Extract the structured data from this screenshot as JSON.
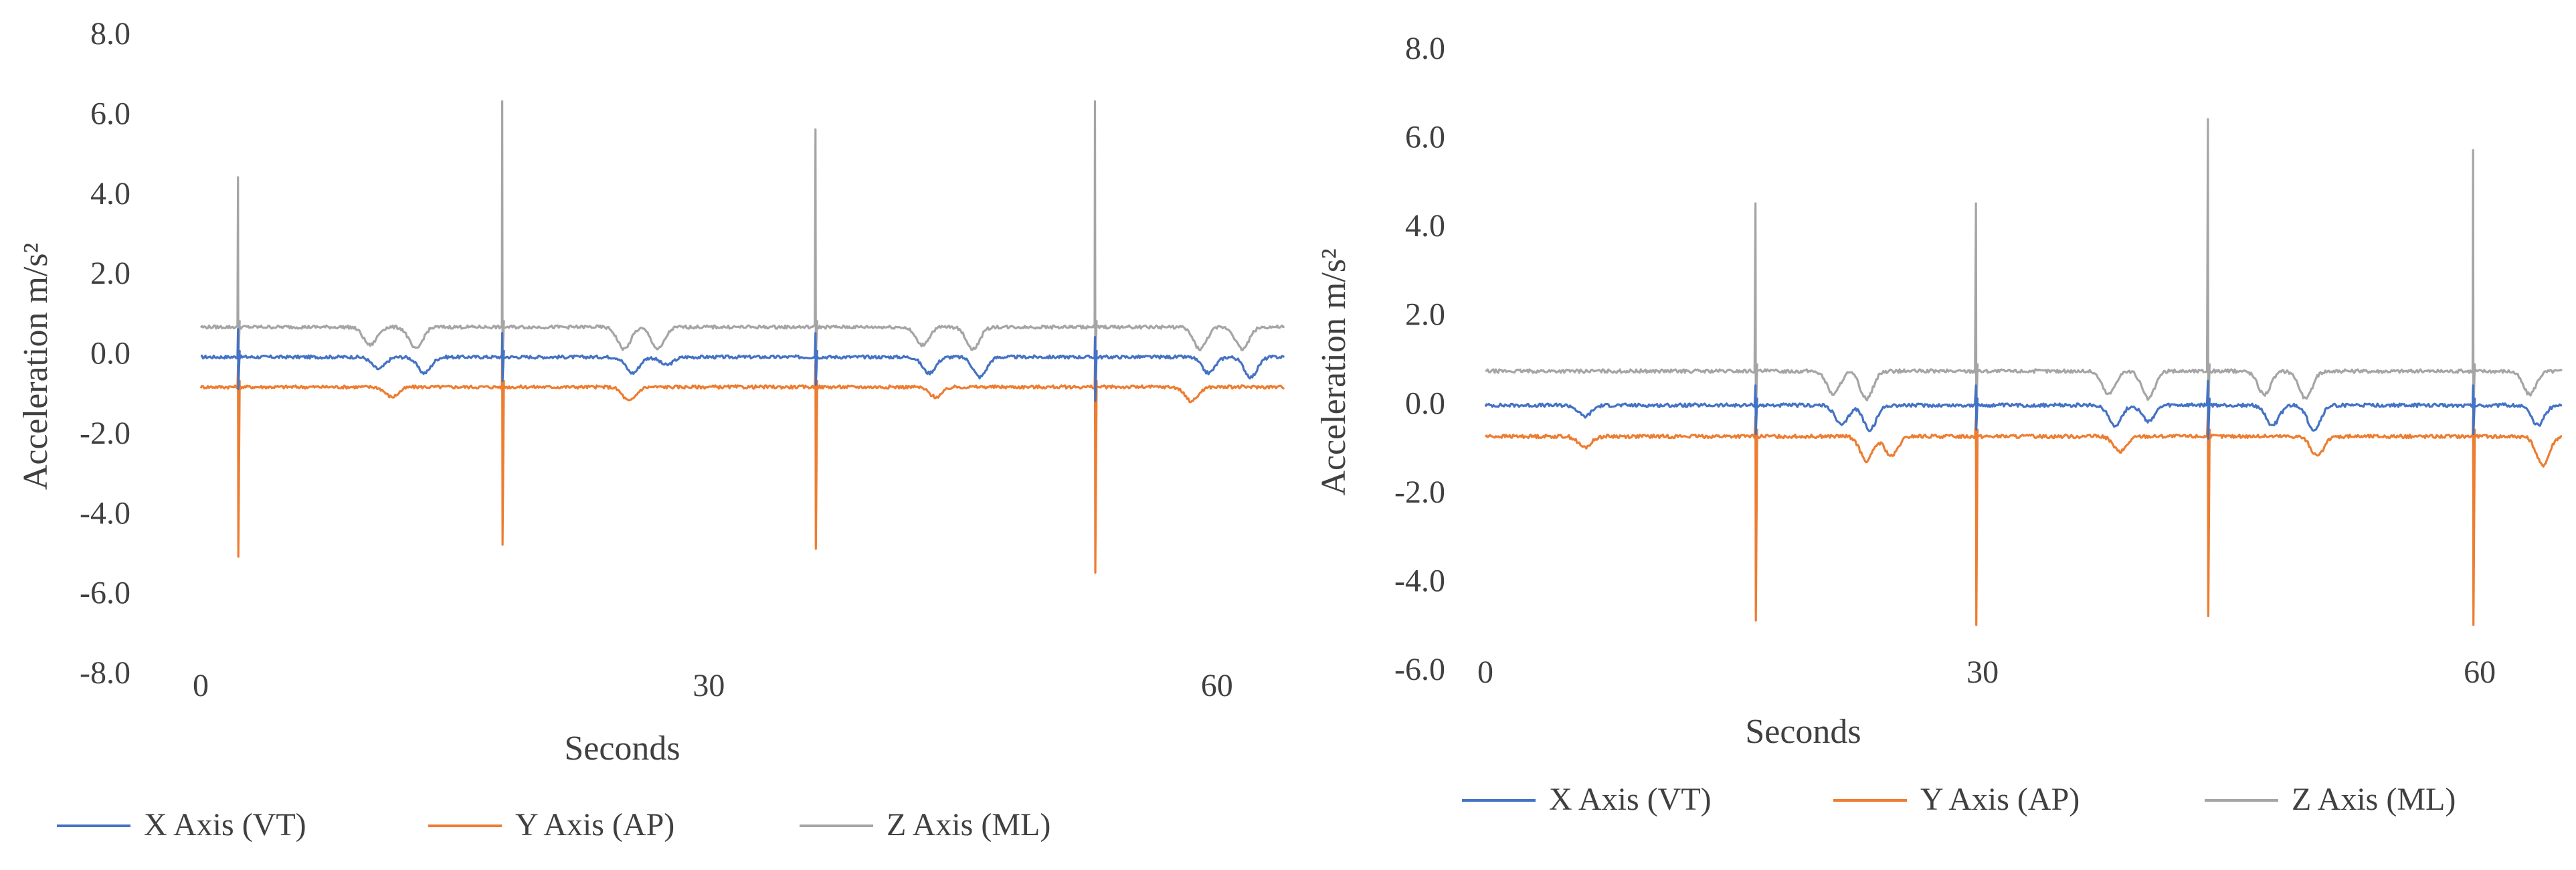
{
  "chart_data": [
    {
      "type": "line",
      "title": "",
      "xlabel": "Seconds",
      "ylabel": "Acceleration m/s²",
      "ylim": [
        -8.0,
        8.0
      ],
      "xlim": [
        0,
        64
      ],
      "y_ticks": [
        "8.0",
        "6.0",
        "4.0",
        "2.0",
        "0.0",
        "-2.0",
        "-4.0",
        "-6.0",
        "-8.0"
      ],
      "x_ticks": [
        "0",
        "30",
        "60"
      ],
      "grid": false,
      "legend": "bottom",
      "series": [
        {
          "name": "X Axis (VT)",
          "color": "#4472C4",
          "baseline": -0.1,
          "spikes": [
            {
              "x": 2.2,
              "values": [
                0.6,
                -0.9
              ]
            },
            {
              "x": 17.8,
              "values": [
                0.5,
                -0.7
              ]
            },
            {
              "x": 36.3,
              "values": [
                0.5,
                -0.8
              ]
            },
            {
              "x": 52.8,
              "values": [
                0.4,
                -1.2
              ]
            }
          ],
          "dips": [
            {
              "x": 10.5,
              "depth": -0.4
            },
            {
              "x": 13.2,
              "depth": -0.5
            },
            {
              "x": 25.5,
              "depth": -0.5
            },
            {
              "x": 27.5,
              "depth": -0.3
            },
            {
              "x": 43.0,
              "depth": -0.5
            },
            {
              "x": 46.0,
              "depth": -0.6
            },
            {
              "x": 59.5,
              "depth": -0.5
            },
            {
              "x": 62.0,
              "depth": -0.6
            }
          ]
        },
        {
          "name": "Y Axis (AP)",
          "color": "#ED7D31",
          "baseline": -0.85,
          "spikes": [
            {
              "x": 2.2,
              "values": [
                -0.3,
                -5.1
              ]
            },
            {
              "x": 17.8,
              "values": [
                0.2,
                -4.8
              ]
            },
            {
              "x": 36.3,
              "values": [
                -0.2,
                -4.9
              ]
            },
            {
              "x": 52.8,
              "values": [
                -0.3,
                -5.5
              ]
            }
          ],
          "dips": [
            {
              "x": 11.3,
              "depth": -1.1
            },
            {
              "x": 25.3,
              "depth": -1.2
            },
            {
              "x": 43.4,
              "depth": -1.1
            },
            {
              "x": 58.5,
              "depth": -1.2
            }
          ]
        },
        {
          "name": "Z Axis (ML)",
          "color": "#A5A5A5",
          "baseline": 0.65,
          "spikes": [
            {
              "x": 2.2,
              "values": [
                4.4,
                -0.3
              ]
            },
            {
              "x": 17.8,
              "values": [
                6.3,
                -0.2
              ]
            },
            {
              "x": 36.3,
              "values": [
                5.6,
                -0.1
              ]
            },
            {
              "x": 52.8,
              "values": [
                6.3,
                -0.2
              ]
            }
          ],
          "dips": [
            {
              "x": 10.0,
              "depth": 0.2
            },
            {
              "x": 12.7,
              "depth": 0.1
            },
            {
              "x": 25.0,
              "depth": 0.1
            },
            {
              "x": 27.0,
              "depth": 0.1
            },
            {
              "x": 42.6,
              "depth": 0.2
            },
            {
              "x": 45.6,
              "depth": 0.1
            },
            {
              "x": 59.0,
              "depth": 0.1
            },
            {
              "x": 61.5,
              "depth": 0.1
            }
          ]
        }
      ]
    },
    {
      "type": "line",
      "title": "",
      "xlabel": "Seconds",
      "ylabel": "Acceleration m/s²",
      "ylim": [
        -6.0,
        8.0
      ],
      "xlim": [
        0,
        65
      ],
      "y_ticks": [
        "8.0",
        "6.0",
        "4.0",
        "2.0",
        "0.0",
        "-2.0",
        "-4.0",
        "-6.0"
      ],
      "x_ticks": [
        "0",
        "30",
        "60"
      ],
      "grid": false,
      "legend": "bottom",
      "series": [
        {
          "name": "X Axis (VT)",
          "color": "#4472C4",
          "baseline": -0.05,
          "spikes": [
            {
              "x": 16.3,
              "values": [
                0.4,
                -0.7
              ]
            },
            {
              "x": 29.6,
              "values": [
                0.4,
                -0.6
              ]
            },
            {
              "x": 43.6,
              "values": [
                0.5,
                -0.8
              ]
            },
            {
              "x": 59.6,
              "values": [
                0.4,
                -0.7
              ]
            }
          ],
          "dips": [
            {
              "x": 6.0,
              "depth": -0.3
            },
            {
              "x": 21.5,
              "depth": -0.5
            },
            {
              "x": 23.2,
              "depth": -0.6
            },
            {
              "x": 38.0,
              "depth": -0.5
            },
            {
              "x": 40.0,
              "depth": -0.4
            },
            {
              "x": 47.5,
              "depth": -0.5
            },
            {
              "x": 50.0,
              "depth": -0.6
            },
            {
              "x": 63.5,
              "depth": -0.5
            }
          ]
        },
        {
          "name": "Y Axis (AP)",
          "color": "#ED7D31",
          "baseline": -0.75,
          "spikes": [
            {
              "x": 16.3,
              "values": [
                -0.3,
                -4.9
              ]
            },
            {
              "x": 29.6,
              "values": [
                -0.3,
                -5.0
              ]
            },
            {
              "x": 43.6,
              "values": [
                -0.2,
                -4.8
              ]
            },
            {
              "x": 59.6,
              "values": [
                -0.3,
                -5.0
              ]
            }
          ],
          "dips": [
            {
              "x": 6.0,
              "depth": -1.0
            },
            {
              "x": 23.0,
              "depth": -1.3
            },
            {
              "x": 24.5,
              "depth": -1.2
            },
            {
              "x": 38.3,
              "depth": -1.1
            },
            {
              "x": 50.2,
              "depth": -1.2
            },
            {
              "x": 63.8,
              "depth": -1.4
            }
          ]
        },
        {
          "name": "Z Axis (ML)",
          "color": "#A5A5A5",
          "baseline": 0.72,
          "spikes": [
            {
              "x": 16.3,
              "values": [
                4.5,
                -0.4
              ]
            },
            {
              "x": 29.6,
              "values": [
                4.5,
                -0.3
              ]
            },
            {
              "x": 43.6,
              "values": [
                6.4,
                -0.2
              ]
            },
            {
              "x": 59.6,
              "values": [
                5.7,
                -0.3
              ]
            }
          ],
          "dips": [
            {
              "x": 21.0,
              "depth": 0.2
            },
            {
              "x": 23.0,
              "depth": 0.1
            },
            {
              "x": 37.6,
              "depth": 0.2
            },
            {
              "x": 40.0,
              "depth": 0.1
            },
            {
              "x": 47.0,
              "depth": 0.2
            },
            {
              "x": 49.5,
              "depth": 0.1
            },
            {
              "x": 63.0,
              "depth": 0.2
            }
          ]
        }
      ]
    }
  ]
}
